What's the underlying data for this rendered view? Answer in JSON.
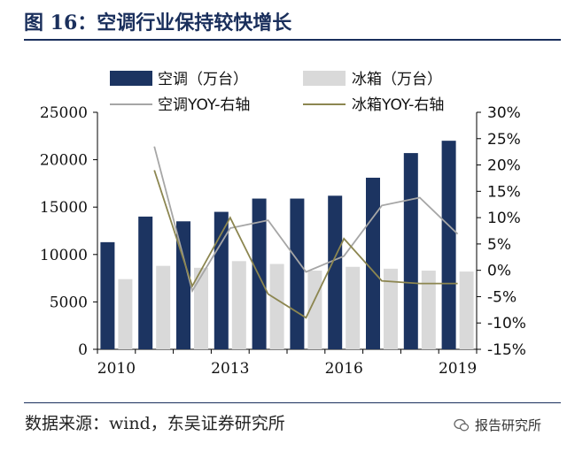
{
  "header": {
    "title": "图 16：空调行业保持较快增长"
  },
  "footer": {
    "source": "数据来源：wind，东吴证券研究所",
    "watermark": "报告研究所"
  },
  "colors": {
    "ac_bar": "#1c3461",
    "fridge_bar": "#d9d9d9",
    "ac_line": "#a6a6a6",
    "fridge_line": "#8c8650",
    "axis": "#000000"
  },
  "icons": {
    "watermark": "wechat-icon"
  },
  "chart_data": {
    "type": "bar",
    "categories": [
      "2010",
      "2011",
      "2012",
      "2013",
      "2014",
      "2015",
      "2016",
      "2017",
      "2018",
      "2019"
    ],
    "x_tick_labels": [
      {
        "index": 0,
        "label": "2010"
      },
      {
        "index": 3,
        "label": "2013"
      },
      {
        "index": 6,
        "label": "2016"
      },
      {
        "index": 9,
        "label": "2019"
      }
    ],
    "ylim": [
      0,
      25000
    ],
    "y_ticks": [
      0,
      5000,
      10000,
      15000,
      20000,
      25000
    ],
    "y2lim": [
      -15,
      30
    ],
    "y2_ticks": [
      -15,
      -10,
      -5,
      0,
      5,
      10,
      15,
      20,
      25,
      30
    ],
    "y2_tick_labels": [
      "-15%",
      "-10%",
      "-5%",
      "0%",
      "5%",
      "10%",
      "15%",
      "20%",
      "25%",
      "30%"
    ],
    "series": [
      {
        "name": "空调（万台）",
        "kind": "bar",
        "axis": "left",
        "values": [
          11300,
          14000,
          13500,
          14500,
          15900,
          15900,
          16200,
          18100,
          20700,
          22000
        ]
      },
      {
        "name": "冰箱（万台）",
        "kind": "bar",
        "axis": "left",
        "values": [
          7400,
          8800,
          8600,
          9300,
          9000,
          8300,
          8700,
          8500,
          8300,
          8200
        ]
      },
      {
        "name": "空调YOY-右轴",
        "kind": "line",
        "axis": "right",
        "values": [
          null,
          23.5,
          -3.9,
          8.0,
          9.5,
          -0.3,
          2.7,
          12.3,
          13.8,
          6.9
        ]
      },
      {
        "name": "冰箱YOY-右轴",
        "kind": "line",
        "axis": "right",
        "values": [
          null,
          19.0,
          -3.0,
          10.0,
          -4.5,
          -9.0,
          6.0,
          -2.0,
          -2.5,
          -2.5
        ]
      }
    ],
    "legend_position": "top",
    "grid": false
  }
}
